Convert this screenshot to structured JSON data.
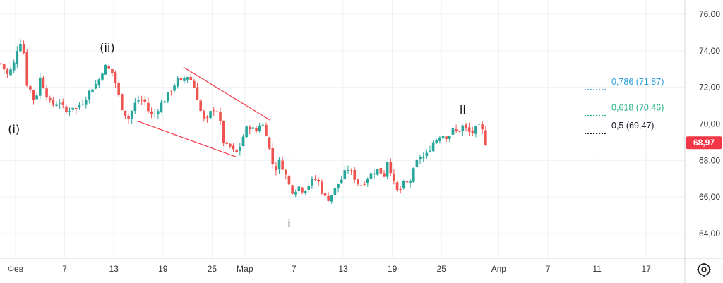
{
  "chart_data": {
    "type": "candlestick",
    "ylim": [
      62.8,
      77.0
    ],
    "y_ticks": [
      {
        "value": 64,
        "label": "64,00"
      },
      {
        "value": 66,
        "label": "66,00"
      },
      {
        "value": 68,
        "label": "68,00"
      },
      {
        "value": 70,
        "label": "70,00"
      },
      {
        "value": 72,
        "label": "72,00"
      },
      {
        "value": 74,
        "label": "74,00"
      },
      {
        "value": 76,
        "label": "76,00"
      }
    ],
    "x_ticks": [
      {
        "day": 0,
        "label": "Фев"
      },
      {
        "day": 6,
        "label": "7"
      },
      {
        "day": 12,
        "label": "13"
      },
      {
        "day": 18,
        "label": "19"
      },
      {
        "day": 24,
        "label": "25"
      },
      {
        "day": 28,
        "label": "Мар"
      },
      {
        "day": 34,
        "label": "7"
      },
      {
        "day": 40,
        "label": "13"
      },
      {
        "day": 46,
        "label": "19"
      },
      {
        "day": 52,
        "label": "25"
      },
      {
        "day": 59,
        "label": "Апр"
      },
      {
        "day": 65,
        "label": "7"
      },
      {
        "day": 71,
        "label": "11"
      },
      {
        "day": 77,
        "label": "17"
      }
    ],
    "last_price": {
      "value": 68.97,
      "label": "68,97"
    },
    "close_path": [
      {
        "d": -1.8,
        "v": 73.3
      },
      {
        "d": -1.0,
        "v": 72.7
      },
      {
        "d": -0.3,
        "v": 73.1
      },
      {
        "d": 0.2,
        "v": 74.1
      },
      {
        "d": 0.6,
        "v": 74.5
      },
      {
        "d": 1.0,
        "v": 73.9
      },
      {
        "d": 1.4,
        "v": 72.2
      },
      {
        "d": 2.0,
        "v": 71.7
      },
      {
        "d": 2.4,
        "v": 71.0
      },
      {
        "d": 2.9,
        "v": 72.6
      },
      {
        "d": 3.3,
        "v": 72.2
      },
      {
        "d": 3.8,
        "v": 71.6
      },
      {
        "d": 4.3,
        "v": 71.0
      },
      {
        "d": 4.9,
        "v": 71.1
      },
      {
        "d": 5.4,
        "v": 71.2
      },
      {
        "d": 5.9,
        "v": 70.8
      },
      {
        "d": 6.3,
        "v": 70.6
      },
      {
        "d": 6.9,
        "v": 71.0
      },
      {
        "d": 7.4,
        "v": 70.8
      },
      {
        "d": 7.9,
        "v": 71.1
      },
      {
        "d": 8.4,
        "v": 71.3
      },
      {
        "d": 8.9,
        "v": 71.7
      },
      {
        "d": 9.4,
        "v": 72.0
      },
      {
        "d": 9.9,
        "v": 72.2
      },
      {
        "d": 10.4,
        "v": 72.6
      },
      {
        "d": 10.8,
        "v": 73.2
      },
      {
        "d": 11.3,
        "v": 73.0
      },
      {
        "d": 11.8,
        "v": 72.8
      },
      {
        "d": 12.3,
        "v": 72.1
      },
      {
        "d": 12.6,
        "v": 71.5
      },
      {
        "d": 12.9,
        "v": 71.0
      },
      {
        "d": 13.3,
        "v": 70.6
      },
      {
        "d": 13.8,
        "v": 70.3
      },
      {
        "d": 14.3,
        "v": 70.8
      },
      {
        "d": 14.8,
        "v": 71.3
      },
      {
        "d": 15.3,
        "v": 71.3
      },
      {
        "d": 15.8,
        "v": 71.2
      },
      {
        "d": 16.3,
        "v": 70.6
      },
      {
        "d": 16.8,
        "v": 70.4
      },
      {
        "d": 17.3,
        "v": 70.8
      },
      {
        "d": 17.8,
        "v": 71.1
      },
      {
        "d": 18.3,
        "v": 71.4
      },
      {
        "d": 18.8,
        "v": 71.7
      },
      {
        "d": 19.3,
        "v": 72.1
      },
      {
        "d": 19.8,
        "v": 72.4
      },
      {
        "d": 20.3,
        "v": 72.2
      },
      {
        "d": 20.8,
        "v": 72.7
      },
      {
        "d": 21.3,
        "v": 72.5
      },
      {
        "d": 21.8,
        "v": 72.0
      },
      {
        "d": 22.3,
        "v": 71.3
      },
      {
        "d": 22.8,
        "v": 70.3
      },
      {
        "d": 23.3,
        "v": 70.1
      },
      {
        "d": 23.8,
        "v": 70.6
      },
      {
        "d": 24.3,
        "v": 70.9
      },
      {
        "d": 24.8,
        "v": 70.6
      },
      {
        "d": 25.2,
        "v": 69.4
      },
      {
        "d": 25.6,
        "v": 68.7
      },
      {
        "d": 26.1,
        "v": 68.8
      },
      {
        "d": 26.6,
        "v": 68.5
      },
      {
        "d": 27.1,
        "v": 68.4
      },
      {
        "d": 27.5,
        "v": 68.9
      },
      {
        "d": 28.0,
        "v": 69.6
      },
      {
        "d": 28.5,
        "v": 69.9
      },
      {
        "d": 29.0,
        "v": 69.7
      },
      {
        "d": 29.4,
        "v": 69.6
      },
      {
        "d": 29.9,
        "v": 70.1
      },
      {
        "d": 30.4,
        "v": 69.8
      },
      {
        "d": 30.8,
        "v": 69.2
      },
      {
        "d": 31.2,
        "v": 68.0
      },
      {
        "d": 31.7,
        "v": 67.5
      },
      {
        "d": 32.2,
        "v": 67.9
      },
      {
        "d": 32.7,
        "v": 67.6
      },
      {
        "d": 33.2,
        "v": 66.9
      },
      {
        "d": 33.6,
        "v": 66.4
      },
      {
        "d": 34.0,
        "v": 66.3
      },
      {
        "d": 34.5,
        "v": 66.6
      },
      {
        "d": 35.0,
        "v": 66.4
      },
      {
        "d": 35.5,
        "v": 66.5
      },
      {
        "d": 36.0,
        "v": 66.8
      },
      {
        "d": 36.5,
        "v": 67.0
      },
      {
        "d": 37.0,
        "v": 66.8
      },
      {
        "d": 37.5,
        "v": 66.2
      },
      {
        "d": 38.0,
        "v": 65.8
      },
      {
        "d": 38.5,
        "v": 66.1
      },
      {
        "d": 39.0,
        "v": 66.4
      },
      {
        "d": 39.5,
        "v": 66.8
      },
      {
        "d": 40.0,
        "v": 67.1
      },
      {
        "d": 40.5,
        "v": 67.6
      },
      {
        "d": 41.0,
        "v": 67.3
      },
      {
        "d": 41.5,
        "v": 67.0
      },
      {
        "d": 42.0,
        "v": 66.6
      },
      {
        "d": 42.5,
        "v": 66.8
      },
      {
        "d": 43.0,
        "v": 67.1
      },
      {
        "d": 43.5,
        "v": 67.3
      },
      {
        "d": 44.0,
        "v": 67.5
      },
      {
        "d": 44.5,
        "v": 67.4
      },
      {
        "d": 45.0,
        "v": 67.2
      },
      {
        "d": 45.5,
        "v": 68.2
      },
      {
        "d": 46.0,
        "v": 67.0
      },
      {
        "d": 46.5,
        "v": 66.3
      },
      {
        "d": 47.0,
        "v": 66.4
      },
      {
        "d": 47.5,
        "v": 66.8
      },
      {
        "d": 48.0,
        "v": 66.7
      },
      {
        "d": 48.5,
        "v": 67.3
      },
      {
        "d": 49.0,
        "v": 67.9
      },
      {
        "d": 49.5,
        "v": 68.3
      },
      {
        "d": 50.0,
        "v": 68.1
      },
      {
        "d": 50.5,
        "v": 68.6
      },
      {
        "d": 51.0,
        "v": 69.0
      },
      {
        "d": 51.5,
        "v": 69.2
      },
      {
        "d": 52.0,
        "v": 69.5
      },
      {
        "d": 52.5,
        "v": 69.3
      },
      {
        "d": 53.0,
        "v": 69.4
      },
      {
        "d": 53.5,
        "v": 69.7
      },
      {
        "d": 54.0,
        "v": 69.5
      },
      {
        "d": 54.5,
        "v": 69.9
      },
      {
        "d": 55.0,
        "v": 69.7
      },
      {
        "d": 55.5,
        "v": 69.5
      },
      {
        "d": 56.0,
        "v": 69.6
      },
      {
        "d": 56.5,
        "v": 69.9
      },
      {
        "d": 57.0,
        "v": 69.6
      },
      {
        "d": 57.4,
        "v": 68.97
      }
    ],
    "annotations": [
      {
        "label": "(i)",
        "d": -0.2,
        "v": 69.5
      },
      {
        "label": "(ii)",
        "d": 11.2,
        "v": 73.95
      },
      {
        "label": "i",
        "d": 33.4,
        "v": 64.35
      },
      {
        "label": "ii",
        "d": 54.6,
        "v": 70.55
      }
    ],
    "trendlines": [
      {
        "from": {
          "d": 20.5,
          "v": 73.1
        },
        "to": {
          "d": 31.1,
          "v": 70.2
        }
      },
      {
        "from": {
          "d": 14.9,
          "v": 70.15
        },
        "to": {
          "d": 26.9,
          "v": 68.2
        }
      }
    ],
    "fib_levels": [
      {
        "label": "0,786 (71,87)",
        "value": 71.87,
        "color": "#2a9de0"
      },
      {
        "label": "0,618 (70,46)",
        "value": 70.46,
        "color": "#26b38a"
      },
      {
        "label": "0,5 (69,47)",
        "value": 69.47,
        "color": "#131722"
      }
    ],
    "colors": {
      "up": "#26a69a",
      "down": "#ef5350",
      "grid": "#eef0f3",
      "axis_text": "#333333",
      "trendline": "#f23645",
      "price_tag": "#f23645"
    }
  },
  "icons": {
    "settings": "gear-icon"
  }
}
